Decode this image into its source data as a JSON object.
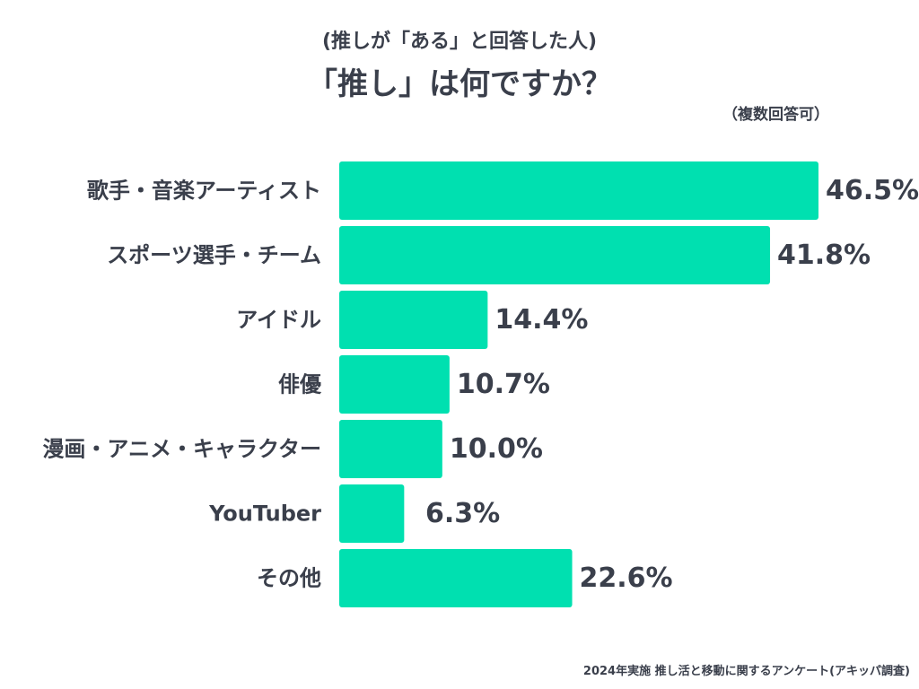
{
  "header": {
    "subtitle": "(推しが「ある」と回答した人)",
    "title": "「推し」は何ですか？",
    "note": "（複数回答可）"
  },
  "footer": {
    "source": "2024年実施 推し活と移動に関するアンケート(アキッパ調査)"
  },
  "colors": {
    "bar": "#00e0b0",
    "text": "#3a3f4b"
  },
  "chart_data": {
    "type": "bar",
    "orientation": "horizontal",
    "categories": [
      "歌手・音楽アーティスト",
      "スポーツ選手・チーム",
      "アイドル",
      "俳優",
      "漫画・アニメ・キャラクター",
      "YouTuber",
      "その他"
    ],
    "values": [
      46.5,
      41.8,
      14.4,
      10.7,
      10.0,
      6.3,
      22.6
    ],
    "value_labels": [
      "46.5%",
      "41.8%",
      "14.4%",
      "10.7%",
      "10.0%",
      "6.3%",
      "22.6%"
    ],
    "unit": "%",
    "title": "「推し」は何ですか？",
    "subtitle": "(推しが「ある」と回答した人)",
    "xlabel": "",
    "ylabel": "",
    "xlim": [
      0,
      46.5
    ],
    "grid": false
  }
}
